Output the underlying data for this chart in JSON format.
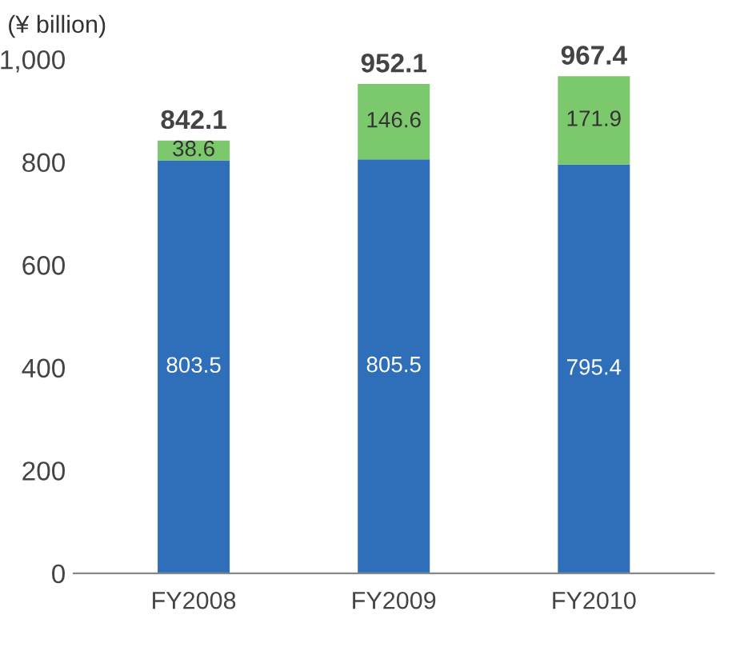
{
  "chart_data": {
    "type": "bar",
    "stacked": true,
    "ylabel": "(¥ billion)",
    "categories": [
      "FY2008",
      "FY2009",
      "FY2010"
    ],
    "series": [
      {
        "color": "#2f6fba",
        "values": [
          803.5,
          805.5,
          795.4
        ]
      },
      {
        "color": "#7cc86d",
        "values": [
          38.6,
          146.6,
          171.9
        ]
      }
    ],
    "totals": [
      "842.1",
      "952.1",
      "967.4"
    ],
    "data_labels": true,
    "ylim": [
      0,
      1000
    ],
    "yticks": [
      0,
      200,
      400,
      600,
      800,
      {
        "value": 1000,
        "label": "1,000"
      }
    ],
    "grid": false,
    "legend": false
  }
}
